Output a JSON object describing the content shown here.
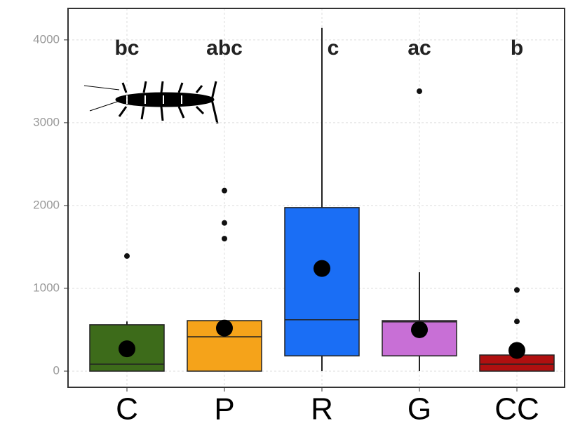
{
  "chart_data": {
    "type": "box",
    "categories": [
      "C",
      "P",
      "R",
      "G",
      "CC"
    ],
    "colors": [
      "#3d6b1a",
      "#f5a31a",
      "#1a6ef5",
      "#c86fd6",
      "#b01010"
    ],
    "group_letters": [
      "bc",
      "abc",
      "c",
      "ac",
      "b"
    ],
    "boxes": [
      {
        "min": 0,
        "q1": 0,
        "median": 85,
        "q3": 560,
        "max": 600,
        "mean": 270,
        "outliers": [
          1390
        ]
      },
      {
        "min": 0,
        "q1": 0,
        "median": 415,
        "q3": 610,
        "max": 610,
        "mean": 520,
        "outliers": [
          2180,
          1790,
          1600
        ]
      },
      {
        "min": 0,
        "q1": 185,
        "median": 620,
        "q3": 1975,
        "max": 4145,
        "mean": 1240,
        "outliers": []
      },
      {
        "min": 0,
        "q1": 185,
        "median": 595,
        "q3": 610,
        "max": 1195,
        "mean": 500,
        "outliers": [
          3380
        ]
      },
      {
        "min": 0,
        "q1": 0,
        "median": 85,
        "q3": 195,
        "max": 330,
        "mean": 250,
        "outliers": [
          980,
          600
        ]
      }
    ],
    "ylim": [
      -195,
      4380
    ],
    "yticks": [
      0,
      1000,
      2000,
      3000,
      4000
    ],
    "grid": true
  }
}
